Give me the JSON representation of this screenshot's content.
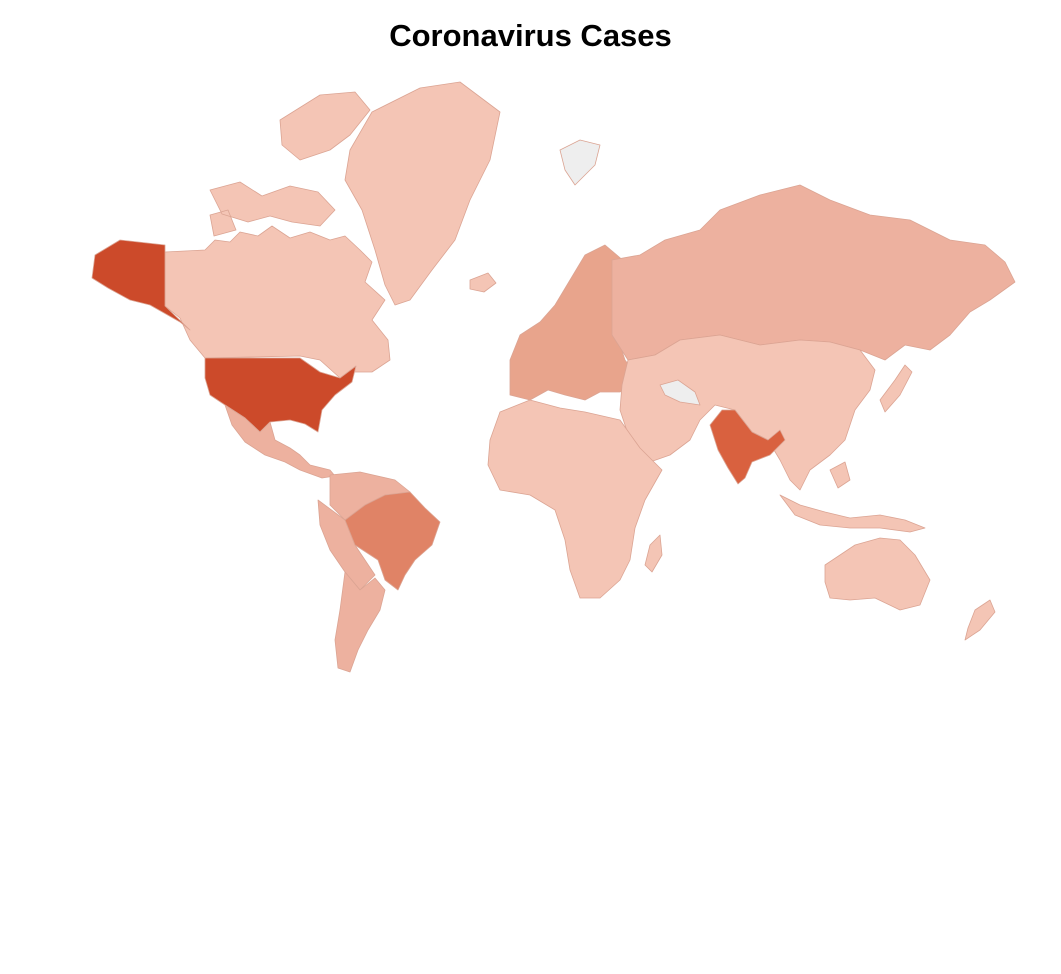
{
  "title": "Coronavirus Cases",
  "legend": null,
  "colors": {
    "very_high": "#cc4a2a",
    "high": "#d9613f",
    "medium": "#e08366",
    "low_mid": "#e8a48c",
    "low": "#edb19f",
    "minimal": "#f4c5b5",
    "no_data": "#eeeeee",
    "border": "#dba493"
  },
  "countries": [
    {
      "id": "usa",
      "name": "United States",
      "level": "very_high"
    },
    {
      "id": "alaska",
      "name": "United States",
      "level": "very_high"
    },
    {
      "id": "india",
      "name": "India",
      "level": "high"
    },
    {
      "id": "brazil",
      "name": "Brazil",
      "level": "medium"
    },
    {
      "id": "russia",
      "name": "Russia",
      "level": "low"
    },
    {
      "id": "argentina",
      "name": "Argentina",
      "level": "low"
    },
    {
      "id": "peru",
      "name": "Peru",
      "level": "low"
    },
    {
      "id": "colombia",
      "name": "Colombia",
      "level": "low"
    },
    {
      "id": "mexico",
      "name": "Mexico",
      "level": "low"
    },
    {
      "id": "canada",
      "name": "Canada",
      "level": "minimal"
    },
    {
      "id": "greenland",
      "name": "Greenland",
      "level": "minimal"
    },
    {
      "id": "europe",
      "name": "Europe",
      "level": "low_mid"
    },
    {
      "id": "asia",
      "name": "Asia",
      "level": "minimal"
    },
    {
      "id": "africa",
      "name": "Africa",
      "level": "minimal"
    },
    {
      "id": "australia",
      "name": "Australia",
      "level": "minimal"
    },
    {
      "id": "indonesia",
      "name": "Indonesia",
      "level": "minimal"
    },
    {
      "id": "turkmenistan",
      "name": "Turkmenistan",
      "level": "no_data"
    },
    {
      "id": "svalbard",
      "name": "Svalbard",
      "level": "no_data"
    }
  ]
}
